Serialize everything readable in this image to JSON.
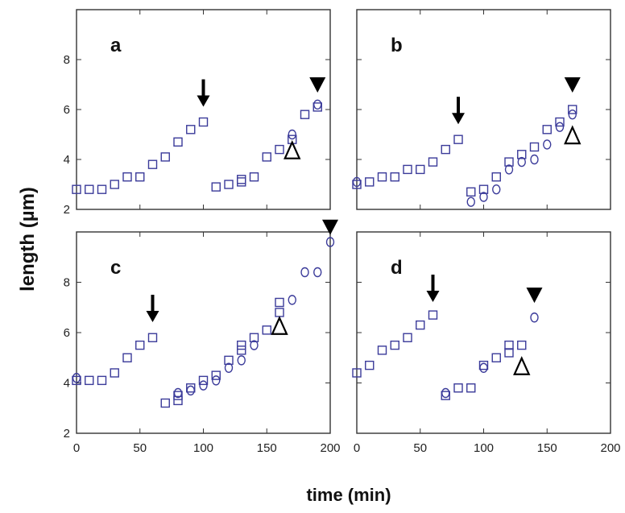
{
  "figure": {
    "ylabel": "length (µm)",
    "xlabel": "time (min)",
    "marker_color": "#3b3b9a",
    "frame_color": "#333333"
  },
  "chart_data": [
    {
      "type": "scatter",
      "panel": "a",
      "xlim": [
        0,
        200
      ],
      "ylim": [
        2,
        10
      ],
      "xticks": [],
      "yticks": [
        2,
        4,
        6,
        8
      ],
      "series": [
        {
          "name": "squares",
          "marker": "square",
          "x": [
            0,
            10,
            20,
            30,
            40,
            50,
            60,
            70,
            80,
            90,
            100,
            110,
            120,
            130,
            130,
            140,
            150,
            160,
            170,
            180,
            190
          ],
          "y": [
            2.8,
            2.8,
            2.8,
            3.0,
            3.3,
            3.3,
            3.8,
            4.1,
            4.7,
            5.2,
            5.5,
            2.9,
            3.0,
            3.1,
            3.2,
            3.3,
            4.1,
            4.4,
            4.8,
            5.8,
            6.1
          ]
        },
        {
          "name": "circles",
          "marker": "circle",
          "x": [
            170,
            190
          ],
          "y": [
            5.0,
            6.2
          ]
        }
      ],
      "annotations": [
        {
          "symbol": "down-arrow",
          "x": 100,
          "y": 6.5
        },
        {
          "symbol": "open-triangle",
          "x": 170,
          "y": 4.3
        },
        {
          "symbol": "filled-triangle",
          "x": 190,
          "y": 7.0
        }
      ]
    },
    {
      "type": "scatter",
      "panel": "b",
      "xlim": [
        0,
        200
      ],
      "ylim": [
        2,
        10
      ],
      "xticks": [],
      "yticks": [],
      "series": [
        {
          "name": "squares",
          "marker": "square",
          "x": [
            0,
            10,
            20,
            30,
            40,
            50,
            60,
            70,
            80,
            90,
            100,
            110,
            120,
            130,
            140,
            150,
            160,
            170
          ],
          "y": [
            3.0,
            3.1,
            3.3,
            3.3,
            3.6,
            3.6,
            3.9,
            4.4,
            4.8,
            2.7,
            2.8,
            3.3,
            3.9,
            4.2,
            4.5,
            5.2,
            5.5,
            6.0
          ]
        },
        {
          "name": "circles",
          "marker": "circle",
          "x": [
            0,
            90,
            100,
            110,
            120,
            130,
            140,
            150,
            160,
            170
          ],
          "y": [
            3.1,
            2.3,
            2.5,
            2.8,
            3.6,
            3.9,
            4.0,
            4.6,
            5.3,
            5.8
          ]
        }
      ],
      "annotations": [
        {
          "symbol": "down-arrow",
          "x": 80,
          "y": 5.8
        },
        {
          "symbol": "open-triangle",
          "x": 170,
          "y": 4.9
        },
        {
          "symbol": "filled-triangle",
          "x": 170,
          "y": 7.0
        }
      ]
    },
    {
      "type": "scatter",
      "panel": "c",
      "xlim": [
        0,
        200
      ],
      "ylim": [
        2,
        10
      ],
      "xticks": [
        0,
        50,
        100,
        150,
        200
      ],
      "yticks": [
        2,
        4,
        6,
        8
      ],
      "series": [
        {
          "name": "squares",
          "marker": "square",
          "x": [
            0,
            10,
            20,
            30,
            40,
            50,
            60,
            70,
            80,
            80,
            90,
            100,
            110,
            120,
            130,
            130,
            140,
            150,
            160,
            160
          ],
          "y": [
            4.1,
            4.1,
            4.1,
            4.4,
            5.0,
            5.5,
            5.8,
            3.2,
            3.3,
            3.5,
            3.8,
            4.1,
            4.3,
            4.9,
            5.3,
            5.5,
            5.8,
            6.1,
            6.8,
            7.2
          ]
        },
        {
          "name": "circles",
          "marker": "circle",
          "x": [
            0,
            80,
            90,
            100,
            110,
            120,
            130,
            140,
            170,
            180,
            190,
            200
          ],
          "y": [
            4.2,
            3.6,
            3.7,
            3.9,
            4.1,
            4.6,
            4.9,
            5.5,
            7.3,
            8.4,
            8.4,
            9.6
          ]
        }
      ],
      "annotations": [
        {
          "symbol": "down-arrow",
          "x": 60,
          "y": 6.8
        },
        {
          "symbol": "open-triangle",
          "x": 160,
          "y": 6.2
        },
        {
          "symbol": "filled-triangle",
          "x": 200,
          "y": 10.2
        }
      ]
    },
    {
      "type": "scatter",
      "panel": "d",
      "xlim": [
        0,
        200
      ],
      "ylim": [
        2,
        10
      ],
      "xticks": [
        0,
        50,
        100,
        150,
        200
      ],
      "yticks": [],
      "series": [
        {
          "name": "squares",
          "marker": "square",
          "x": [
            0,
            10,
            20,
            30,
            40,
            50,
            60,
            70,
            80,
            90,
            100,
            110,
            120,
            120,
            130
          ],
          "y": [
            4.4,
            4.7,
            5.3,
            5.5,
            5.8,
            6.3,
            6.7,
            3.5,
            3.8,
            3.8,
            4.7,
            5.0,
            5.2,
            5.5,
            5.5
          ]
        },
        {
          "name": "circles",
          "marker": "circle",
          "x": [
            70,
            100,
            140
          ],
          "y": [
            3.6,
            4.6,
            6.6
          ]
        }
      ],
      "annotations": [
        {
          "symbol": "down-arrow",
          "x": 60,
          "y": 7.6
        },
        {
          "symbol": "open-triangle",
          "x": 130,
          "y": 4.6
        },
        {
          "symbol": "filled-triangle",
          "x": 140,
          "y": 7.5
        }
      ]
    }
  ]
}
